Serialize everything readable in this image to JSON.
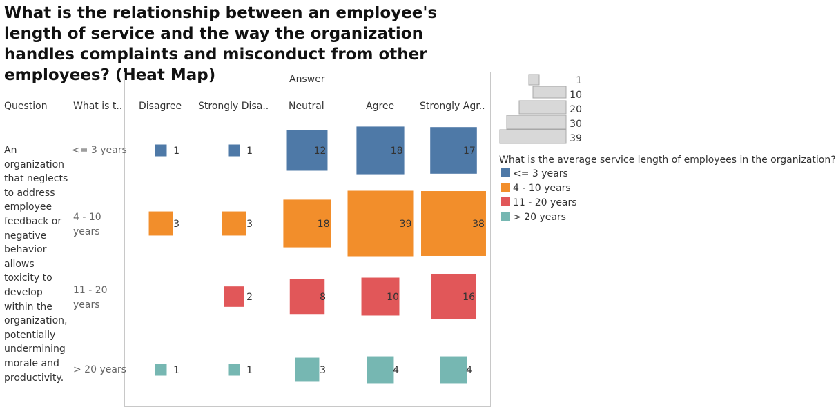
{
  "title": "What is the relationship between an employee's length of service and the way the organization handles complaints and misconduct from other employees? (Heat Map)",
  "header": {
    "answer_label": "Answer",
    "question_label": "Question",
    "what_label": "What is t.."
  },
  "question_text": "An organization that neglects to address employee feedback or negative behavior allows toxicity to develop within the organization, potentially undermining morale and productivity.",
  "colors": {
    "<= 3 years": "#4e79a7",
    "4 - 10 years": "#f28e2b",
    "11 - 20 years": "#e15759",
    "> 20 years": "#76b7b2"
  },
  "size_legend": {
    "values": [
      "1",
      "10",
      "20",
      "30",
      "39"
    ]
  },
  "color_legend": {
    "title": "What is the average service length of employees in the organization?",
    "items": [
      "<= 3 years",
      "4 - 10 years",
      "11 - 20 years",
      "> 20 years"
    ]
  },
  "chart_data": {
    "type": "heatmap",
    "title": "What is the relationship between an employee's length of service and the way the organization handles complaints and misconduct from other employees? (Heat Map)",
    "columns_header": "Answer",
    "columns": [
      "Disagree",
      "Strongly Disa..",
      "Neutral",
      "Agree",
      "Strongly Agr.."
    ],
    "rows": [
      {
        "label": "<= 3 years",
        "values": [
          1,
          1,
          12,
          18,
          17
        ]
      },
      {
        "label": "4 - 10 years",
        "values": [
          3,
          3,
          18,
          39,
          38
        ]
      },
      {
        "label": "11 - 20 years",
        "values": [
          null,
          2,
          8,
          10,
          16
        ]
      },
      {
        "label": "> 20 years",
        "values": [
          1,
          1,
          3,
          4,
          4
        ]
      }
    ],
    "size_range": [
      1,
      39
    ]
  }
}
